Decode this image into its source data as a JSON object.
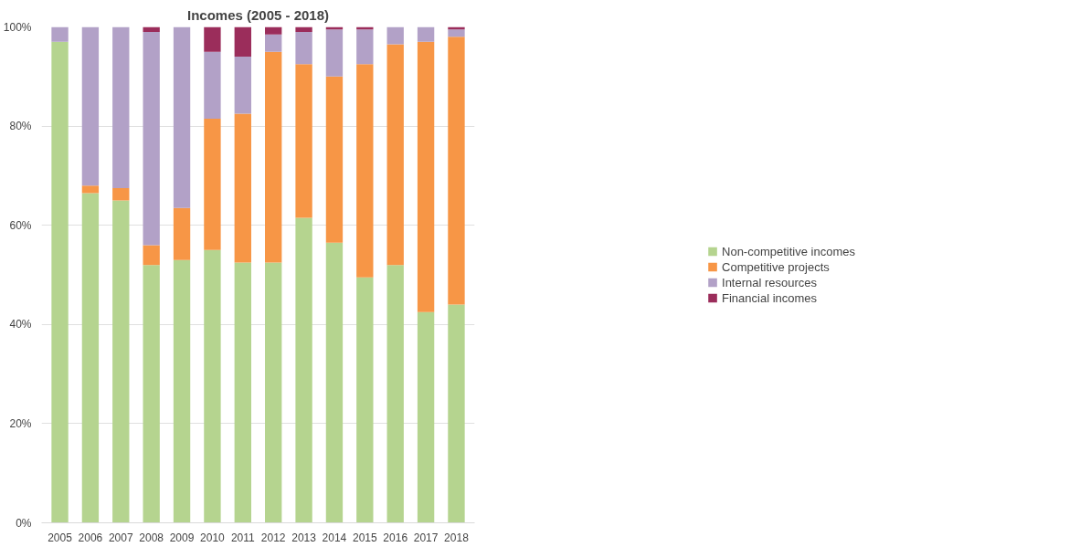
{
  "chart_data": {
    "type": "bar",
    "title": "Incomes (2005 - 2018)",
    "stacked": true,
    "categories": [
      "2005",
      "2006",
      "2007",
      "2008",
      "2009",
      "2010",
      "2011",
      "2012",
      "2013",
      "2014",
      "2015",
      "2016",
      "2017",
      "2018"
    ],
    "series": [
      {
        "name": "Non-competitive incomes",
        "color": "#b5d48f",
        "values": [
          97,
          66.5,
          65,
          52,
          53,
          55,
          52.5,
          52.5,
          61.5,
          56.5,
          49.5,
          52,
          42.5,
          44
        ]
      },
      {
        "name": "Competitive projects",
        "color": "#f79646",
        "values": [
          null,
          1.5,
          2.5,
          4,
          10.5,
          26.5,
          30,
          42.5,
          31,
          33.5,
          43,
          44.5,
          54.5,
          54
        ]
      },
      {
        "name": "Internal resources",
        "color": "#b2a1c7",
        "values": [
          3,
          32,
          32.5,
          43,
          36.5,
          13.5,
          11.5,
          3.5,
          6.5,
          9.5,
          7,
          3.5,
          3,
          1.5
        ]
      },
      {
        "name": "Financial incomes",
        "color": "#9b2d5b",
        "values": [
          null,
          null,
          null,
          1,
          null,
          5,
          6,
          1.5,
          1,
          0.5,
          0.5,
          null,
          null,
          0.5
        ]
      }
    ],
    "ylim": [
      0,
      100
    ],
    "yticks": [
      {
        "value": 0,
        "label": "0%"
      },
      {
        "value": 20,
        "label": "20%"
      },
      {
        "value": 40,
        "label": "40%"
      },
      {
        "value": 60,
        "label": "60%"
      },
      {
        "value": 80,
        "label": "80%"
      },
      {
        "value": 100,
        "label": "100%"
      }
    ],
    "grid": "y",
    "legend": "right"
  }
}
